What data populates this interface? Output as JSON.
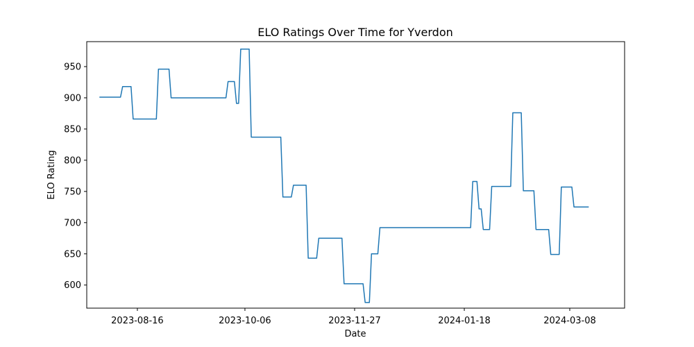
{
  "chart_data": {
    "type": "line",
    "title": "ELO Ratings Over Time for Yverdon",
    "xlabel": "Date",
    "ylabel": "ELO Rating",
    "x_ticks": [
      "2023-08-16",
      "2023-10-06",
      "2023-11-27",
      "2024-01-18",
      "2024-03-08"
    ],
    "y_ticks": [
      600,
      650,
      700,
      750,
      800,
      850,
      900,
      950
    ],
    "xlim": [
      "2023-07-23",
      "2024-04-03"
    ],
    "ylim": [
      563,
      990
    ],
    "grid": false,
    "legend": "none",
    "series_color": "#1f77b4",
    "points": [
      [
        "2023-07-29",
        901
      ],
      [
        "2023-08-08",
        901
      ],
      [
        "2023-08-09",
        918
      ],
      [
        "2023-08-13",
        918
      ],
      [
        "2023-08-14",
        866
      ],
      [
        "2023-08-25",
        866
      ],
      [
        "2023-08-26",
        946
      ],
      [
        "2023-08-31",
        946
      ],
      [
        "2023-09-01",
        900
      ],
      [
        "2023-09-27",
        900
      ],
      [
        "2023-09-28",
        926
      ],
      [
        "2023-10-01",
        926
      ],
      [
        "2023-10-02",
        891
      ],
      [
        "2023-10-03",
        891
      ],
      [
        "2023-10-04",
        978
      ],
      [
        "2023-10-08",
        978
      ],
      [
        "2023-10-09",
        837
      ],
      [
        "2023-10-23",
        837
      ],
      [
        "2023-10-24",
        741
      ],
      [
        "2023-10-28",
        741
      ],
      [
        "2023-10-29",
        760
      ],
      [
        "2023-11-04",
        760
      ],
      [
        "2023-11-05",
        643
      ],
      [
        "2023-11-09",
        643
      ],
      [
        "2023-11-10",
        675
      ],
      [
        "2023-11-21",
        675
      ],
      [
        "2023-11-22",
        602
      ],
      [
        "2023-12-01",
        602
      ],
      [
        "2023-12-02",
        572
      ],
      [
        "2023-12-04",
        572
      ],
      [
        "2023-12-05",
        650
      ],
      [
        "2023-12-08",
        650
      ],
      [
        "2023-12-09",
        692
      ],
      [
        "2024-01-21",
        692
      ],
      [
        "2024-01-22",
        766
      ],
      [
        "2024-01-24",
        766
      ],
      [
        "2024-01-25",
        722
      ],
      [
        "2024-01-26",
        722
      ],
      [
        "2024-01-27",
        689
      ],
      [
        "2024-01-30",
        689
      ],
      [
        "2024-01-31",
        758
      ],
      [
        "2024-02-09",
        758
      ],
      [
        "2024-02-10",
        876
      ],
      [
        "2024-02-14",
        876
      ],
      [
        "2024-02-15",
        751
      ],
      [
        "2024-02-20",
        751
      ],
      [
        "2024-02-21",
        689
      ],
      [
        "2024-02-27",
        689
      ],
      [
        "2024-02-28",
        649
      ],
      [
        "2024-03-03",
        649
      ],
      [
        "2024-03-04",
        757
      ],
      [
        "2024-03-09",
        757
      ],
      [
        "2024-03-10",
        725
      ],
      [
        "2024-03-17",
        725
      ]
    ]
  }
}
